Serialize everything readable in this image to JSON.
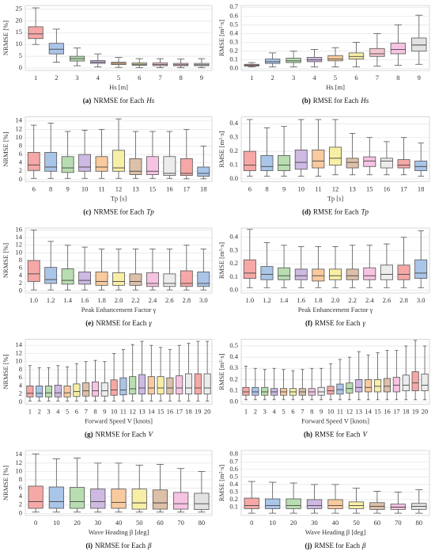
{
  "chart_data": [
    {
      "type": "box",
      "caption_label": "(a)",
      "caption": "NRMSE for Each",
      "caption_symbol": "Hs",
      "xlabel": "Hs [m]",
      "ylabel": "NRMSE [%]",
      "categories": [
        "1",
        "2",
        "3",
        "4",
        "5",
        "6",
        "7",
        "8",
        "9"
      ],
      "min": [
        10,
        2.5,
        1,
        0.5,
        0.3,
        0.2,
        0.2,
        0.2,
        0.2
      ],
      "q1": [
        12.5,
        6,
        3,
        2,
        1.5,
        1.2,
        1,
        1,
        1
      ],
      "median": [
        14.5,
        8,
        4,
        2.5,
        2,
        1.6,
        1.5,
        1.4,
        1.4
      ],
      "q3": [
        17.5,
        10.5,
        5,
        3.2,
        2.5,
        2.2,
        2.2,
        2,
        2
      ],
      "max": [
        25.5,
        16.5,
        8.5,
        6,
        4.5,
        4,
        4,
        3.8,
        4
      ],
      "colors": [
        "#f6a8a6",
        "#a9c5e8",
        "#b8ddb0",
        "#cdb9e2",
        "#f9ca9e",
        "#f7efa6",
        "#f3c6cf",
        "#f7c3e2",
        "#e2e2e2"
      ],
      "ylim": [
        -1,
        26.5
      ],
      "yticks": [
        0,
        5,
        10,
        15,
        20,
        25
      ],
      "grid": true
    },
    {
      "type": "box",
      "caption_label": "(b)",
      "caption": "RMSE for Each",
      "caption_symbol": "Hs",
      "xlabel": "Hs [m]",
      "ylabel": "RMSE [m²·s]",
      "categories": [
        "1",
        "2",
        "3",
        "4",
        "5",
        "6",
        "7",
        "8",
        "9"
      ],
      "min": [
        0.02,
        0.02,
        0.02,
        0.02,
        0.02,
        0.02,
        0.03,
        0.04,
        0.05
      ],
      "q1": [
        0.03,
        0.06,
        0.07,
        0.08,
        0.09,
        0.11,
        0.14,
        0.17,
        0.2
      ],
      "median": [
        0.04,
        0.08,
        0.09,
        0.1,
        0.11,
        0.14,
        0.17,
        0.22,
        0.27
      ],
      "q3": [
        0.05,
        0.11,
        0.12,
        0.13,
        0.15,
        0.18,
        0.23,
        0.29,
        0.35
      ],
      "max": [
        0.07,
        0.18,
        0.2,
        0.22,
        0.24,
        0.3,
        0.4,
        0.5,
        0.61
      ],
      "colors": [
        "#f6a8a6",
        "#a9c5e8",
        "#b8ddb0",
        "#cdb9e2",
        "#f9ca9e",
        "#f7efa6",
        "#f3c6cf",
        "#f7c3e2",
        "#e2e2e2"
      ],
      "ylim": [
        -0.02,
        0.72
      ],
      "yticks": [
        {
          "value": 0,
          "label": "0.0"
        },
        0.1,
        0.2,
        0.3,
        0.4,
        0.5,
        0.6,
        0.7
      ],
      "grid": true
    },
    {
      "type": "box",
      "caption_label": "(c)",
      "caption": "NRMSE for Each",
      "caption_symbol": "Tp",
      "xlabel": "Tp [s]",
      "ylabel": "NRMSE [%]",
      "categories": [
        "6",
        "8",
        "9",
        "10",
        "11",
        "12",
        "13",
        "15",
        "16",
        "17",
        "18"
      ],
      "min": [
        0.3,
        0.3,
        0.3,
        0.3,
        0.3,
        0.3,
        0.3,
        0.3,
        0.3,
        0.2,
        0.2
      ],
      "q1": [
        2.2,
        2,
        1.7,
        2,
        2,
        2,
        1.2,
        1.2,
        1,
        1,
        0.8
      ],
      "median": [
        3.5,
        3,
        2.8,
        3,
        3,
        2.8,
        2,
        2,
        1.5,
        1.5,
        1.5
      ],
      "q3": [
        6.5,
        6.5,
        5.5,
        6,
        5.5,
        7,
        5,
        5.5,
        5.5,
        5,
        3
      ],
      "max": [
        13,
        13.5,
        11.5,
        11.8,
        12,
        14.5,
        11.5,
        11.5,
        11.5,
        12,
        8
      ],
      "colors": [
        "#f6a8a6",
        "#a9c5e8",
        "#b8ddb0",
        "#cdb9e2",
        "#f9ca9e",
        "#f7efa6",
        "#dcc0a8",
        "#f7c3e2",
        "#ececec",
        "#f6a8a6",
        "#a9c5e8"
      ],
      "ylim": [
        -0.5,
        15
      ],
      "yticks": [
        0,
        2,
        4,
        6,
        8,
        10,
        12,
        14
      ],
      "grid": true
    },
    {
      "type": "box",
      "caption_label": "(d)",
      "caption": "RMSE for Each",
      "caption_symbol": "Tp",
      "xlabel": "Tp [s]",
      "ylabel": "RMSE [m²·s]",
      "categories": [
        "6",
        "8",
        "9",
        "10",
        "11",
        "12",
        "13",
        "15",
        "16",
        "17",
        "18"
      ],
      "min": [
        0.02,
        0.02,
        0.02,
        0.02,
        0.02,
        0.03,
        0.03,
        0.03,
        0.03,
        0.03,
        0.02
      ],
      "q1": [
        0.06,
        0.06,
        0.06,
        0.07,
        0.08,
        0.1,
        0.08,
        0.09,
        0.08,
        0.08,
        0.06
      ],
      "median": [
        0.1,
        0.09,
        0.1,
        0.12,
        0.13,
        0.15,
        0.12,
        0.13,
        0.13,
        0.1,
        0.09
      ],
      "q3": [
        0.2,
        0.17,
        0.17,
        0.21,
        0.21,
        0.23,
        0.15,
        0.16,
        0.15,
        0.14,
        0.13
      ],
      "max": [
        0.43,
        0.37,
        0.38,
        0.43,
        0.43,
        0.43,
        0.33,
        0.3,
        0.27,
        0.3,
        0.26
      ],
      "colors": [
        "#f6a8a6",
        "#a9c5e8",
        "#b8ddb0",
        "#cdb9e2",
        "#f9ca9e",
        "#f7efa6",
        "#dcc0a8",
        "#f7c3e2",
        "#ececec",
        "#f6a8a6",
        "#a9c5e8"
      ],
      "ylim": [
        -0.02,
        0.45
      ],
      "yticks": [
        {
          "value": 0,
          "label": "0.0"
        },
        0.1,
        0.2,
        0.3,
        0.4
      ],
      "grid": true
    },
    {
      "type": "box",
      "caption_label": "(e)",
      "caption": "NRMSE for Each",
      "caption_symbol": "γ",
      "xlabel": "Peak Enhancement Factor γ",
      "ylabel": "NRMSE [%]",
      "categories": [
        "1.0",
        "1.2",
        "1.4",
        "1.6",
        "1.8",
        "2.0",
        "2.2",
        "2.4",
        "2.6",
        "2.8",
        "3.0"
      ],
      "min": [
        0.3,
        0.3,
        0.3,
        0.3,
        0.3,
        0.3,
        0.3,
        0.3,
        0.3,
        0.3,
        0.3
      ],
      "q1": [
        2.5,
        2,
        1.8,
        1.8,
        1.5,
        1.5,
        1.5,
        1.2,
        1.2,
        1.2,
        1.2
      ],
      "median": [
        4.5,
        3,
        2.8,
        2.8,
        2.5,
        2.5,
        2.5,
        2,
        2,
        2,
        2
      ],
      "q3": [
        8,
        6.2,
        5.8,
        5,
        5,
        4.8,
        4.5,
        4.8,
        4.5,
        5.3,
        5
      ],
      "max": [
        16,
        13,
        12,
        11.5,
        11,
        11,
        11,
        11,
        11,
        12,
        11
      ],
      "colors": [
        "#f6a8a6",
        "#a9c5e8",
        "#b8ddb0",
        "#cdb9e2",
        "#f9ca9e",
        "#f7efa6",
        "#dcc0a8",
        "#f7c3e2",
        "#ececec",
        "#f6a8a6",
        "#a9c5e8"
      ],
      "ylim": [
        -0.5,
        16.5
      ],
      "yticks": [
        0,
        2,
        4,
        6,
        8,
        10,
        12,
        14,
        16
      ],
      "grid": true
    },
    {
      "type": "box",
      "caption_label": "(f)",
      "caption": "RMSE for Each",
      "caption_symbol": "γ",
      "xlabel": "Peak Enhancement Factor γ",
      "ylabel": "RMSE [m²·s]",
      "categories": [
        "1.0",
        "1.2",
        "1.4",
        "1.6",
        "1.8",
        "2.0",
        "2.2",
        "2.4",
        "2.6",
        "2.8",
        "3.0"
      ],
      "min": [
        0.02,
        0.02,
        0.02,
        0.02,
        0.02,
        0.02,
        0.02,
        0.02,
        0.02,
        0.02,
        0.02
      ],
      "q1": [
        0.09,
        0.08,
        0.08,
        0.08,
        0.07,
        0.08,
        0.08,
        0.08,
        0.08,
        0.08,
        0.09
      ],
      "median": [
        0.13,
        0.12,
        0.11,
        0.11,
        0.11,
        0.11,
        0.11,
        0.11,
        0.12,
        0.12,
        0.13
      ],
      "q3": [
        0.23,
        0.18,
        0.17,
        0.16,
        0.16,
        0.16,
        0.16,
        0.17,
        0.19,
        0.19,
        0.23
      ],
      "max": [
        0.46,
        0.36,
        0.34,
        0.33,
        0.33,
        0.33,
        0.34,
        0.34,
        0.35,
        0.4,
        0.45
      ],
      "colors": [
        "#f6a8a6",
        "#a9c5e8",
        "#b8ddb0",
        "#cdb9e2",
        "#f9ca9e",
        "#f7efa6",
        "#dcc0a8",
        "#f7c3e2",
        "#ececec",
        "#f6a8a6",
        "#a9c5e8"
      ],
      "ylim": [
        -0.02,
        0.47
      ],
      "yticks": [
        {
          "value": 0,
          "label": "0.0"
        },
        0.1,
        0.2,
        0.3,
        0.4
      ],
      "grid": true
    },
    {
      "type": "box",
      "caption_label": "(g)",
      "caption": "NRMSE for Each",
      "caption_symbol": "V",
      "xlabel": "Forward Speed V [knots]",
      "ylabel": "NRMSE [%]",
      "categories": [
        "1",
        "2",
        "3",
        "4",
        "5",
        "6",
        "7",
        "8",
        "9",
        "10",
        "11",
        "12",
        "13",
        "14",
        "15",
        "16",
        "17",
        "18",
        "19",
        "20"
      ],
      "min": [
        0.3,
        0.3,
        0.3,
        0.3,
        0.3,
        0.3,
        0.3,
        0.3,
        0.3,
        0.3,
        0.3,
        0.3,
        0.3,
        0.3,
        0.3,
        0.3,
        0.3,
        0.3,
        0.3,
        0.3
      ],
      "q1": [
        1.3,
        1.3,
        1.3,
        1.3,
        1.3,
        1.4,
        1.5,
        1.5,
        1.5,
        1.7,
        1.8,
        2,
        2,
        2,
        2,
        2,
        2,
        2,
        2,
        2
      ],
      "median": [
        2.2,
        2.2,
        2.3,
        2.3,
        2.3,
        2.6,
        2.8,
        2.8,
        2.8,
        3,
        3,
        3.3,
        3.5,
        3.5,
        3.5,
        3.5,
        3.5,
        3.5,
        3.5,
        3.5
      ],
      "q3": [
        4,
        4,
        4,
        4.2,
        4,
        4.5,
        4.8,
        5,
        4.8,
        5.5,
        6,
        6.3,
        6.8,
        6.3,
        6.3,
        6,
        6.5,
        7,
        7,
        7
      ],
      "max": [
        9,
        8.5,
        8.5,
        9,
        8.7,
        9.5,
        10,
        10.3,
        10,
        12,
        13,
        14.2,
        15,
        14,
        13.5,
        13,
        14,
        14.5,
        15,
        15
      ],
      "colors": [
        "#f6a8a6",
        "#a9c5e8",
        "#b8ddb0",
        "#cdb9e2",
        "#f9ca9e",
        "#f7efa6",
        "#dcc0a8",
        "#f7c3e2",
        "#ececec",
        "#f6a8a6",
        "#a9c5e8",
        "#b8ddb0",
        "#cdb9e2",
        "#f9ca9e",
        "#f7efa6",
        "#dcc0a8",
        "#f7c3e2",
        "#ececec",
        "#f6a8a6",
        "#ececec"
      ],
      "ylim": [
        -0.5,
        15.5
      ],
      "yticks": [
        0,
        2,
        4,
        6,
        8,
        10,
        12,
        14
      ],
      "grid": true
    },
    {
      "type": "box",
      "caption_label": "(h)",
      "caption": "RMSE for Each",
      "caption_symbol": "V",
      "xlabel": "Forward Speed V [knots]",
      "ylabel": "RMSE [m²·s]",
      "categories": [
        "1",
        "2",
        "3",
        "4",
        "5",
        "6",
        "7",
        "8",
        "9",
        "10",
        "11",
        "12",
        "13",
        "14",
        "15",
        "16",
        "17",
        "18",
        "19",
        "20"
      ],
      "min": [
        0.02,
        0.02,
        0.02,
        0.02,
        0.02,
        0.02,
        0.02,
        0.02,
        0.02,
        0.02,
        0.02,
        0.02,
        0.02,
        0.02,
        0.02,
        0.02,
        0.02,
        0.02,
        0.02,
        0.02
      ],
      "q1": [
        0.06,
        0.06,
        0.06,
        0.06,
        0.06,
        0.06,
        0.06,
        0.06,
        0.06,
        0.07,
        0.07,
        0.08,
        0.09,
        0.09,
        0.09,
        0.09,
        0.09,
        0.1,
        0.1,
        0.1
      ],
      "median": [
        0.09,
        0.09,
        0.09,
        0.09,
        0.09,
        0.09,
        0.09,
        0.09,
        0.09,
        0.1,
        0.11,
        0.12,
        0.13,
        0.13,
        0.14,
        0.14,
        0.15,
        0.15,
        0.17,
        0.15
      ],
      "q3": [
        0.13,
        0.13,
        0.13,
        0.12,
        0.12,
        0.12,
        0.12,
        0.12,
        0.13,
        0.14,
        0.16,
        0.17,
        0.2,
        0.2,
        0.2,
        0.21,
        0.22,
        0.24,
        0.27,
        0.25
      ],
      "max": [
        0.32,
        0.3,
        0.29,
        0.3,
        0.29,
        0.28,
        0.29,
        0.3,
        0.3,
        0.34,
        0.38,
        0.4,
        0.45,
        0.42,
        0.44,
        0.46,
        0.46,
        0.5,
        0.55,
        0.5
      ],
      "colors": [
        "#f6a8a6",
        "#a9c5e8",
        "#b8ddb0",
        "#cdb9e2",
        "#f9ca9e",
        "#f7efa6",
        "#dcc0a8",
        "#f7c3e2",
        "#ececec",
        "#f6a8a6",
        "#a9c5e8",
        "#b8ddb0",
        "#cdb9e2",
        "#f9ca9e",
        "#f7efa6",
        "#dcc0a8",
        "#f7c3e2",
        "#ececec",
        "#f6a8a6",
        "#ececec"
      ],
      "ylim": [
        -0.02,
        0.56
      ],
      "yticks": [
        {
          "value": 0,
          "label": "0.0"
        },
        0.1,
        0.2,
        0.3,
        0.4,
        0.5
      ],
      "grid": true
    },
    {
      "type": "box",
      "caption_label": "(i)",
      "caption": "NRMSE for Each",
      "caption_symbol": "β",
      "xlabel": "Wave Heading β [deg]",
      "ylabel": "NRMSE [%]",
      "categories": [
        "0",
        "10",
        "20",
        "30",
        "40",
        "50",
        "60",
        "70",
        "80"
      ],
      "min": [
        0.3,
        0.3,
        0.3,
        0.3,
        0.3,
        0.3,
        0.3,
        0.3,
        0.3
      ],
      "q1": [
        1.2,
        1.2,
        1.2,
        1.2,
        1.2,
        1,
        1,
        1,
        0.9
      ],
      "median": [
        2.8,
        2.8,
        2.8,
        2.8,
        2.6,
        2.5,
        2.5,
        2.3,
        2.3
      ],
      "q3": [
        6.5,
        6.3,
        6.2,
        5.8,
        5.8,
        5.8,
        5.6,
        5,
        4.8
      ],
      "max": [
        14.2,
        13,
        13.2,
        12,
        12,
        11.5,
        11.7,
        10.7,
        10
      ],
      "colors": [
        "#f6a8a6",
        "#a9c5e8",
        "#b8ddb0",
        "#cdb9e2",
        "#f9ca9e",
        "#f7efa6",
        "#dcc0a8",
        "#f7c3e2",
        "#e2e2e2"
      ],
      "ylim": [
        -0.5,
        15
      ],
      "yticks": [
        0,
        2,
        4,
        6,
        8,
        10,
        12,
        14
      ],
      "grid": true
    },
    {
      "type": "box",
      "caption_label": "(j)",
      "caption": "RMSE for Each",
      "caption_symbol": "β",
      "xlabel": "Wave Heading β [deg]",
      "ylabel": "RMSE [m²·s]",
      "categories": [
        "0",
        "10",
        "20",
        "30",
        "40",
        "50",
        "60",
        "70",
        "80"
      ],
      "min": [
        0.02,
        0.02,
        0.02,
        0.02,
        0.02,
        0.02,
        0.02,
        0.02,
        0.02
      ],
      "q1": [
        0.08,
        0.08,
        0.08,
        0.08,
        0.08,
        0.08,
        0.07,
        0.07,
        0.07
      ],
      "median": [
        0.12,
        0.12,
        0.12,
        0.12,
        0.12,
        0.12,
        0.11,
        0.1,
        0.11
      ],
      "q3": [
        0.22,
        0.21,
        0.21,
        0.2,
        0.2,
        0.17,
        0.16,
        0.14,
        0.15
      ],
      "max": [
        0.44,
        0.43,
        0.42,
        0.4,
        0.4,
        0.35,
        0.31,
        0.3,
        0.33
      ],
      "colors": [
        "#f6a8a6",
        "#a9c5e8",
        "#b8ddb0",
        "#cdb9e2",
        "#f9ca9e",
        "#f7efa6",
        "#dcc0a8",
        "#f7c3e2",
        "#e2e2e2"
      ],
      "ylim": [
        -0.01,
        0.85
      ],
      "yticks": [
        0.1,
        0.2,
        0.3,
        0.4,
        0.5,
        0.6,
        0.7,
        0.8
      ],
      "grid": true
    }
  ]
}
